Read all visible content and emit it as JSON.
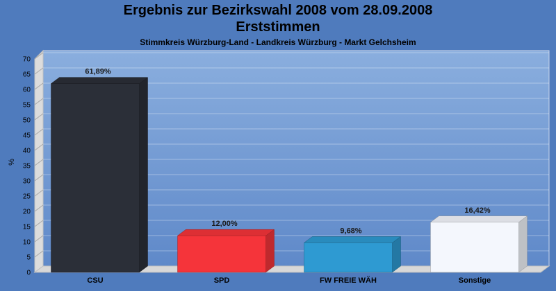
{
  "chart_data": {
    "type": "bar",
    "title": "Ergebnis zur Bezirkswahl 2008 vom 28.09.2008",
    "title2": "Erststimmen",
    "subtitle": "Stimmkreis Würzburg-Land - Landkreis Würzburg - Markt Gelchsheim",
    "ylabel": "%",
    "xlabel": "",
    "ylim": [
      0,
      70
    ],
    "yticks": [
      0,
      5,
      10,
      15,
      20,
      25,
      30,
      35,
      40,
      45,
      50,
      55,
      60,
      65,
      70
    ],
    "categories": [
      "CSU",
      "SPD",
      "FW FREIE WÄH",
      "Sonstige"
    ],
    "values": [
      61.89,
      12.0,
      9.68,
      16.42
    ],
    "data_labels": [
      "61,89%",
      "12,00%",
      "9,68%",
      "16,42%"
    ],
    "colors": [
      "#2b2f38",
      "#f5343a",
      "#2e9ad2",
      "#f4f7fd"
    ],
    "grid": true,
    "legend": "none"
  }
}
